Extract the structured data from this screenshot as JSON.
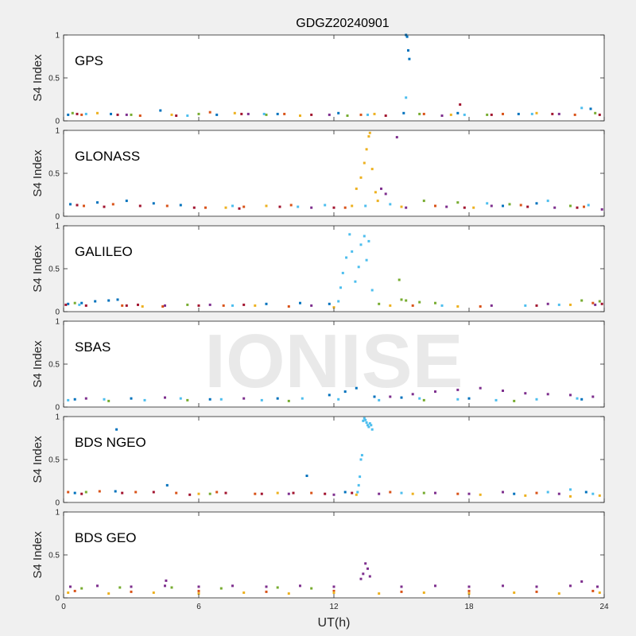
{
  "figure": {
    "title": "GDGZ20240901",
    "watermark": "IONISE"
  },
  "chart_data": {
    "type": "scatter",
    "xlabel": "UT(h)",
    "ylabel": "S4 Index",
    "xlim": [
      0,
      24
    ],
    "ylim": [
      0,
      1
    ],
    "xticks": [
      0,
      6,
      12,
      18,
      24
    ],
    "xtick_labels": [
      "0",
      "6",
      "12",
      "18",
      "24"
    ],
    "yticks": [
      0,
      0.5,
      1
    ],
    "ytick_labels": [
      "0",
      "0.5",
      "1"
    ],
    "grid": false,
    "colors": {
      "blue": "#0072bd",
      "orange": "#d95319",
      "yellow": "#edb120",
      "purple": "#7e2f8e",
      "green": "#77ac30",
      "cyan": "#4dbeee",
      "red": "#a2142f"
    },
    "panels": [
      {
        "label": "GPS",
        "series": [
          {
            "color": "blue",
            "x": [
              0.2,
              2.1,
              4.3,
              6.8,
              9.5,
              12.2,
              15.1,
              15.2,
              15.25,
              15.3,
              15.35,
              17.5,
              20.2,
              23.4
            ],
            "y": [
              0.07,
              0.08,
              0.12,
              0.07,
              0.08,
              0.09,
              0.09,
              1.0,
              0.98,
              0.82,
              0.72,
              0.09,
              0.08,
              0.14
            ]
          },
          {
            "color": "orange",
            "x": [
              0.8,
              3.4,
              6.5,
              9.8,
              13.2,
              16.0,
              19.5,
              22.7
            ],
            "y": [
              0.07,
              0.06,
              0.1,
              0.08,
              0.07,
              0.08,
              0.08,
              0.07
            ]
          },
          {
            "color": "yellow",
            "x": [
              1.5,
              4.8,
              7.6,
              10.5,
              13.8,
              17.2,
              21.0
            ],
            "y": [
              0.09,
              0.07,
              0.09,
              0.06,
              0.08,
              0.07,
              0.09
            ]
          },
          {
            "color": "purple",
            "x": [
              2.8,
              8.2,
              11.8,
              16.8,
              22.0
            ],
            "y": [
              0.07,
              0.08,
              0.07,
              0.06,
              0.08
            ]
          },
          {
            "color": "green",
            "x": [
              0.4,
              3.0,
              6.0,
              9.0,
              12.6,
              15.8,
              18.8,
              23.6
            ],
            "y": [
              0.09,
              0.07,
              0.08,
              0.07,
              0.06,
              0.08,
              0.07,
              0.09
            ]
          },
          {
            "color": "cyan",
            "x": [
              1.0,
              5.5,
              8.9,
              13.5,
              15.2,
              17.8,
              20.8,
              23.0
            ],
            "y": [
              0.08,
              0.06,
              0.08,
              0.07,
              0.27,
              0.07,
              0.08,
              0.15
            ]
          },
          {
            "color": "red",
            "x": [
              0.6,
              2.4,
              5.0,
              7.9,
              11.0,
              14.3,
              17.6,
              19.0,
              21.7,
              23.8
            ],
            "y": [
              0.08,
              0.07,
              0.06,
              0.08,
              0.07,
              0.06,
              0.19,
              0.07,
              0.08,
              0.07
            ]
          }
        ]
      },
      {
        "label": "GLONASS",
        "series": [
          {
            "color": "blue",
            "x": [
              0.3,
              1.5,
              2.8,
              4.0,
              5.2,
              19.5,
              21.0
            ],
            "y": [
              0.14,
              0.16,
              0.18,
              0.15,
              0.13,
              0.12,
              0.15
            ]
          },
          {
            "color": "orange",
            "x": [
              0.9,
              2.2,
              4.6,
              6.3,
              8.0,
              10.1,
              12.5,
              16.5,
              20.3,
              23.1
            ],
            "y": [
              0.12,
              0.14,
              0.12,
              0.1,
              0.11,
              0.13,
              0.1,
              0.12,
              0.13,
              0.11
            ]
          },
          {
            "color": "yellow",
            "x": [
              7.2,
              9.0,
              12.8,
              13.0,
              13.2,
              13.35,
              13.45,
              13.55,
              13.6,
              13.7,
              13.85,
              13.95,
              15.0,
              18.2
            ],
            "y": [
              0.1,
              0.12,
              0.12,
              0.32,
              0.45,
              0.62,
              0.78,
              0.93,
              0.97,
              0.55,
              0.28,
              0.18,
              0.11,
              0.1
            ]
          },
          {
            "color": "purple",
            "x": [
              11.0,
              14.1,
              14.3,
              14.8,
              15.2,
              17.0,
              19.0,
              21.8,
              23.9
            ],
            "y": [
              0.1,
              0.32,
              0.26,
              0.92,
              0.1,
              0.11,
              0.12,
              0.1,
              0.08
            ]
          },
          {
            "color": "green",
            "x": [
              16.0,
              17.5,
              19.8,
              22.5
            ],
            "y": [
              0.18,
              0.16,
              0.14,
              0.12
            ]
          },
          {
            "color": "cyan",
            "x": [
              7.5,
              10.4,
              11.6,
              13.4,
              14.5,
              18.8,
              21.5,
              23.3
            ],
            "y": [
              0.12,
              0.11,
              0.13,
              0.12,
              0.14,
              0.15,
              0.18,
              0.13
            ]
          },
          {
            "color": "red",
            "x": [
              0.6,
              1.8,
              3.4,
              5.8,
              7.8,
              9.6,
              12.0,
              17.8,
              20.6,
              22.8
            ],
            "y": [
              0.13,
              0.11,
              0.12,
              0.1,
              0.09,
              0.11,
              0.1,
              0.1,
              0.11,
              0.1
            ]
          }
        ]
      },
      {
        "label": "GALILEO",
        "series": [
          {
            "color": "blue",
            "x": [
              0.2,
              0.8,
              1.4,
              2.0,
              2.4,
              9.0,
              10.5,
              11.8
            ],
            "y": [
              0.09,
              0.1,
              0.12,
              0.13,
              0.14,
              0.09,
              0.1,
              0.09
            ]
          },
          {
            "color": "orange",
            "x": [
              2.6,
              4.4,
              7.1,
              10.0,
              15.5,
              18.5,
              23.5
            ],
            "y": [
              0.07,
              0.06,
              0.07,
              0.06,
              0.07,
              0.06,
              0.1
            ]
          },
          {
            "color": "yellow",
            "x": [
              3.5,
              8.5,
              12.0,
              14.5,
              17.5,
              22.5
            ],
            "y": [
              0.06,
              0.07,
              0.05,
              0.07,
              0.06,
              0.08
            ]
          },
          {
            "color": "purple",
            "x": [
              4.5,
              6.5,
              11.0,
              19.0,
              21.5,
              23.6
            ],
            "y": [
              0.07,
              0.08,
              0.07,
              0.07,
              0.09,
              0.08
            ]
          },
          {
            "color": "green",
            "x": [
              0.5,
              5.5,
              14.0,
              14.9,
              15.0,
              15.2,
              15.8,
              16.5,
              23.0,
              23.8
            ],
            "y": [
              0.1,
              0.08,
              0.09,
              0.37,
              0.14,
              0.13,
              0.11,
              0.1,
              0.13,
              0.12
            ]
          },
          {
            "color": "cyan",
            "x": [
              0.7,
              7.5,
              12.2,
              12.3,
              12.4,
              12.55,
              12.7,
              12.8,
              12.95,
              13.1,
              13.2,
              13.35,
              13.45,
              13.55,
              13.7,
              16.8,
              20.5,
              22.0
            ],
            "y": [
              0.08,
              0.07,
              0.12,
              0.28,
              0.45,
              0.63,
              0.9,
              0.7,
              0.35,
              0.52,
              0.78,
              0.88,
              0.6,
              0.82,
              0.25,
              0.07,
              0.07,
              0.08
            ]
          },
          {
            "color": "red",
            "x": [
              0.1,
              1.0,
              2.8,
              3.3,
              6.0,
              8.0,
              21.0,
              23.9
            ],
            "y": [
              0.08,
              0.07,
              0.07,
              0.08,
              0.07,
              0.08,
              0.07,
              0.09
            ]
          }
        ]
      },
      {
        "label": "SBAS",
        "series": [
          {
            "color": "blue",
            "x": [
              0.5,
              3.0,
              6.5,
              9.5,
              11.8,
              12.5,
              13.0,
              13.8,
              15.0,
              18.0,
              23.0
            ],
            "y": [
              0.09,
              0.1,
              0.09,
              0.1,
              0.14,
              0.18,
              0.22,
              0.12,
              0.11,
              0.1,
              0.09
            ]
          },
          {
            "color": "purple",
            "x": [
              1.0,
              4.5,
              8.0,
              14.5,
              15.5,
              16.5,
              17.5,
              18.5,
              19.5,
              20.5,
              21.5,
              22.5,
              23.5
            ],
            "y": [
              0.1,
              0.11,
              0.1,
              0.12,
              0.15,
              0.18,
              0.2,
              0.22,
              0.19,
              0.16,
              0.15,
              0.14,
              0.12
            ]
          },
          {
            "color": "green",
            "x": [
              2.0,
              5.5,
              10.0,
              16.0,
              20.0
            ],
            "y": [
              0.07,
              0.08,
              0.07,
              0.08,
              0.07
            ]
          },
          {
            "color": "cyan",
            "x": [
              0.2,
              1.8,
              3.6,
              5.2,
              7.0,
              8.8,
              10.6,
              12.2,
              14.0,
              15.8,
              17.5,
              19.2,
              21.0,
              22.8
            ],
            "y": [
              0.08,
              0.09,
              0.08,
              0.1,
              0.09,
              0.08,
              0.1,
              0.09,
              0.08,
              0.1,
              0.09,
              0.08,
              0.09,
              0.1
            ]
          }
        ]
      },
      {
        "label": "BDS NGEO",
        "series": [
          {
            "color": "blue",
            "x": [
              0.5,
              2.3,
              2.35,
              4.6,
              10.8,
              12.5,
              20.0,
              23.2
            ],
            "y": [
              0.11,
              0.13,
              0.85,
              0.2,
              0.31,
              0.12,
              0.1,
              0.12
            ]
          },
          {
            "color": "orange",
            "x": [
              0.2,
              1.6,
              3.2,
              5.0,
              6.8,
              8.5,
              11.0,
              14.5,
              17.5,
              21.0
            ],
            "y": [
              0.12,
              0.13,
              0.12,
              0.11,
              0.12,
              0.1,
              0.11,
              0.12,
              0.1,
              0.11
            ]
          },
          {
            "color": "yellow",
            "x": [
              6.0,
              9.5,
              13.0,
              15.5,
              18.5,
              20.5,
              22.5,
              23.8
            ],
            "y": [
              0.1,
              0.11,
              0.09,
              0.1,
              0.09,
              0.08,
              0.07,
              0.08
            ]
          },
          {
            "color": "purple",
            "x": [
              10.0,
              12.0,
              14.0,
              16.5,
              18.0,
              19.5,
              22.0
            ],
            "y": [
              0.1,
              0.09,
              0.1,
              0.11,
              0.1,
              0.12,
              0.1
            ]
          },
          {
            "color": "green",
            "x": [
              1.0,
              6.5,
              16.0
            ],
            "y": [
              0.12,
              0.1,
              0.11
            ]
          },
          {
            "color": "cyan",
            "x": [
              13.05,
              13.1,
              13.15,
              13.2,
              13.25,
              13.3,
              13.35,
              13.4,
              13.45,
              13.5,
              13.55,
              13.6,
              13.65,
              13.7,
              15.0,
              21.5,
              22.5,
              23.5
            ],
            "y": [
              0.12,
              0.2,
              0.3,
              0.5,
              0.55,
              0.95,
              0.98,
              0.96,
              0.93,
              0.9,
              0.88,
              0.92,
              0.9,
              0.85,
              0.11,
              0.12,
              0.15,
              0.1
            ]
          },
          {
            "color": "red",
            "x": [
              0.8,
              2.6,
              4.0,
              5.6,
              7.2,
              8.8,
              10.2,
              11.6,
              12.8
            ],
            "y": [
              0.1,
              0.11,
              0.12,
              0.09,
              0.11,
              0.1,
              0.11,
              0.1,
              0.11
            ]
          }
        ]
      },
      {
        "label": "BDS GEO",
        "series": [
          {
            "color": "orange",
            "x": [
              0.5,
              3.0,
              6.0,
              9.0,
              12.0,
              15.0,
              18.0,
              21.0,
              23.5
            ],
            "y": [
              0.08,
              0.07,
              0.08,
              0.07,
              0.08,
              0.07,
              0.08,
              0.07,
              0.08
            ]
          },
          {
            "color": "yellow",
            "x": [
              0.2,
              2.0,
              4.0,
              6.0,
              8.0,
              10.0,
              12.0,
              14.0,
              16.0,
              18.0,
              20.0,
              22.0,
              23.8
            ],
            "y": [
              0.06,
              0.05,
              0.06,
              0.05,
              0.06,
              0.05,
              0.06,
              0.05,
              0.06,
              0.05,
              0.06,
              0.05,
              0.06
            ]
          },
          {
            "color": "purple",
            "x": [
              0.3,
              1.5,
              3.0,
              4.5,
              4.55,
              6.0,
              7.5,
              9.0,
              10.5,
              12.0,
              13.2,
              13.3,
              13.4,
              13.5,
              13.6,
              15.0,
              16.5,
              18.0,
              19.5,
              21.0,
              22.5,
              23.0,
              23.7
            ],
            "y": [
              0.13,
              0.14,
              0.13,
              0.14,
              0.2,
              0.13,
              0.14,
              0.13,
              0.14,
              0.13,
              0.22,
              0.28,
              0.4,
              0.34,
              0.25,
              0.13,
              0.14,
              0.13,
              0.14,
              0.13,
              0.14,
              0.19,
              0.13
            ]
          },
          {
            "color": "green",
            "x": [
              0.8,
              2.5,
              4.8,
              7.0,
              9.5,
              11.0
            ],
            "y": [
              0.11,
              0.12,
              0.12,
              0.11,
              0.12,
              0.11
            ]
          }
        ]
      }
    ]
  }
}
